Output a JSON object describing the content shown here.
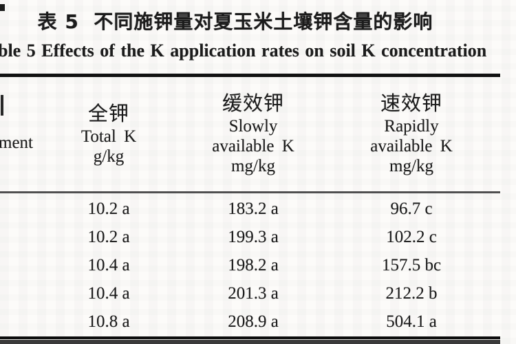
{
  "page": {
    "title_zh": "表 5  不同施钾量对夏玉米土壤钾含量的影响",
    "title_en": "ble 5   Effects of the K application rates on soil K concentration"
  },
  "table": {
    "header": {
      "treatment": {
        "visible_fragment": "ment"
      },
      "total_k": {
        "zh": "全钾",
        "en": "Total K",
        "unit": "g/kg"
      },
      "slowly_k": {
        "zh": "缓效钾",
        "en1": "Slowly",
        "en2": "available K",
        "unit": "mg/kg"
      },
      "rapidly_k": {
        "zh": "速效钾",
        "en1": "Rapidly",
        "en2": "available K",
        "unit": "mg/kg"
      }
    },
    "rows": [
      {
        "total_k": "10.2 a",
        "slowly_k": "183.2 a",
        "rapidly_k": "96.7 c"
      },
      {
        "total_k": "10.2 a",
        "slowly_k": "199.3 a",
        "rapidly_k": "102.2 c"
      },
      {
        "total_k": "10.4 a",
        "slowly_k": "198.2 a",
        "rapidly_k": "157.5 bc"
      },
      {
        "total_k": "10.4 a",
        "slowly_k": "201.3 a",
        "rapidly_k": "212.2 b"
      },
      {
        "total_k": "10.8 a",
        "slowly_k": "208.9 a",
        "rapidly_k": "504.1 a"
      }
    ]
  },
  "colors": {
    "text": "#1b1b1b",
    "rule_heavy": "#121212",
    "rule_light": "#4f4f4f",
    "background": "#fcfbf9"
  }
}
